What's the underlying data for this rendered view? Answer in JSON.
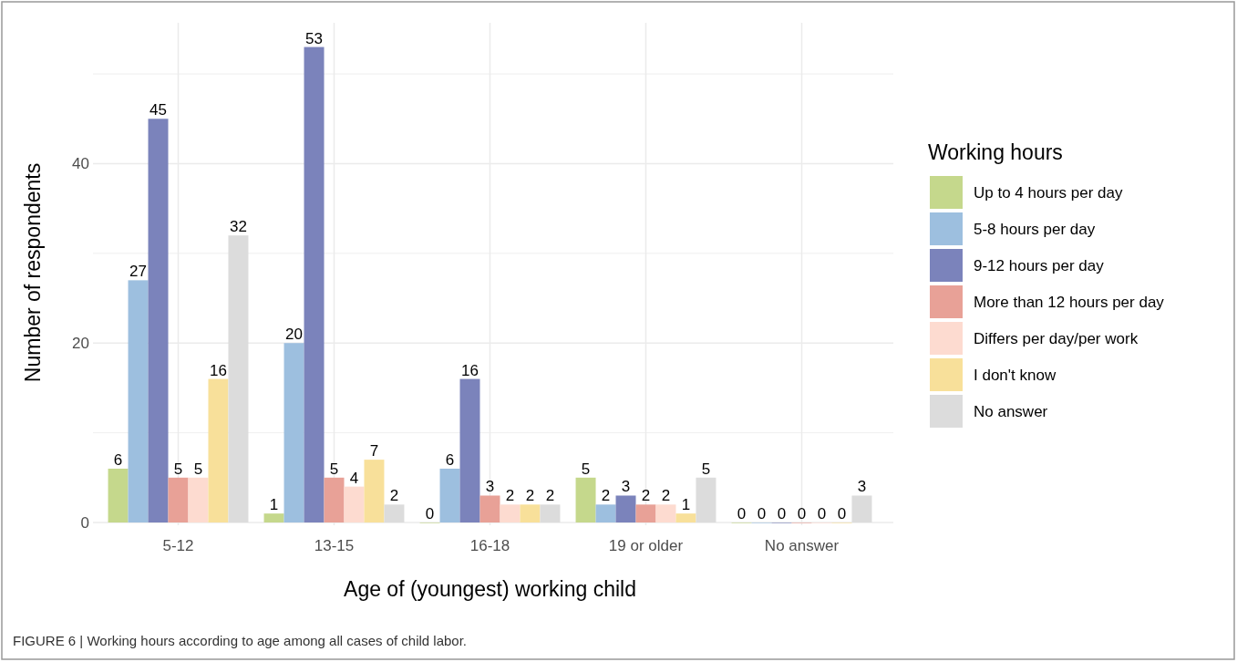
{
  "chart_data": {
    "type": "bar",
    "xlabel": "Age of (youngest) working child",
    "ylabel": "Number of respondents",
    "legend_title": "Working hours",
    "categories": [
      "5-12",
      "13-15",
      "16-18",
      "19 or older",
      "No answer"
    ],
    "series": [
      {
        "name": "Up to 4 hours per day",
        "color": "#c5d88c",
        "values": [
          6,
          1,
          0,
          5,
          0
        ]
      },
      {
        "name": "5-8 hours per day",
        "color": "#9dbfdf",
        "values": [
          27,
          20,
          6,
          2,
          0
        ]
      },
      {
        "name": "9-12 hours per day",
        "color": "#7b83bb",
        "values": [
          45,
          53,
          16,
          3,
          0
        ]
      },
      {
        "name": "More than 12 hours per day",
        "color": "#e8a197",
        "values": [
          5,
          5,
          3,
          2,
          0
        ]
      },
      {
        "name": "Differs per day/per work",
        "color": "#fddbd0",
        "values": [
          5,
          4,
          2,
          2,
          0
        ]
      },
      {
        "name": "I don't know",
        "color": "#f8e09a",
        "values": [
          16,
          7,
          2,
          1,
          0
        ]
      },
      {
        "name": "No answer",
        "color": "#dcdcdc",
        "values": [
          32,
          2,
          2,
          5,
          3
        ]
      }
    ],
    "ylim": [
      0,
      55.7
    ],
    "yticks": [
      0,
      {
        "value": 10,
        "label": null
      },
      20,
      {
        "value": 30,
        "label": null
      },
      40,
      {
        "value": 50,
        "label": null
      }
    ],
    "grid": true,
    "legend": "right",
    "data_labels": true,
    "annotations": [
      "FIGURE 6 | Working hours according to age among all cases of child labor."
    ]
  }
}
